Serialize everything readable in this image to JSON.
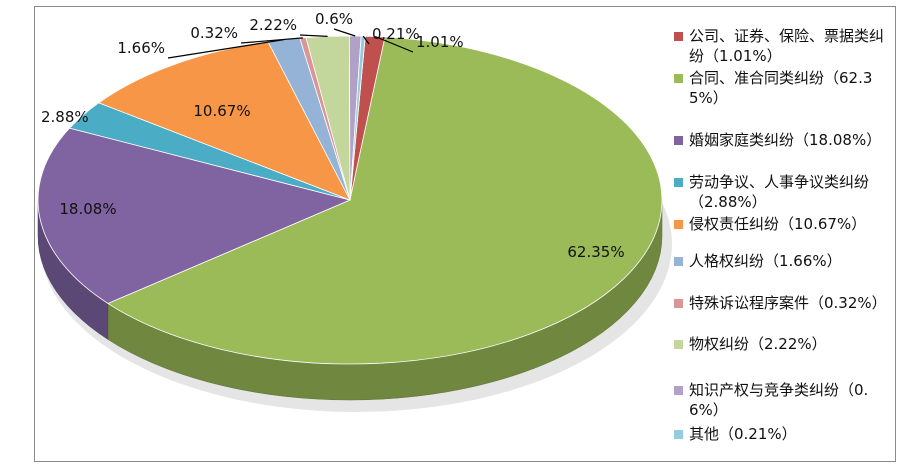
{
  "chart_data": {
    "type": "pie",
    "title": "",
    "legend_position": "right",
    "slices": [
      {
        "label": "公司、证券、保险、票据类纠纷（1.01%）",
        "value": 1.01,
        "display": "1.01%",
        "color": "#c0504d"
      },
      {
        "label": "合同、准合同类纠纷（62.35%）",
        "value": 62.35,
        "display": "62.35%",
        "color": "#9bbb59"
      },
      {
        "label": "婚姻家庭类纠纷（18.08%）",
        "value": 18.08,
        "display": "18.08%",
        "color": "#8064a2"
      },
      {
        "label": "劳动争议、人事争议类纠纷（2.88%）",
        "value": 2.88,
        "display": "2.88%",
        "color": "#4bacc6"
      },
      {
        "label": "侵权责任纠纷（10.67%）",
        "value": 10.67,
        "display": "10.67%",
        "color": "#f79646"
      },
      {
        "label": "人格权纠纷（1.66%）",
        "value": 1.66,
        "display": "1.66%",
        "color": "#95b3d7"
      },
      {
        "label": "特殊诉讼程序案件（0.32%）",
        "value": 0.32,
        "display": "0.32%",
        "color": "#da9694"
      },
      {
        "label": "物权纠纷（2.22%）",
        "value": 2.22,
        "display": "2.22%",
        "color": "#c3d69b"
      },
      {
        "label": "知识产权与竞争类纠纷（0.6%）",
        "value": 0.6,
        "display": "0.6%",
        "color": "#b2a1c7"
      },
      {
        "label": "其他（0.21%）",
        "value": 0.21,
        "display": "0.21%",
        "color": "#93cddd"
      }
    ]
  }
}
